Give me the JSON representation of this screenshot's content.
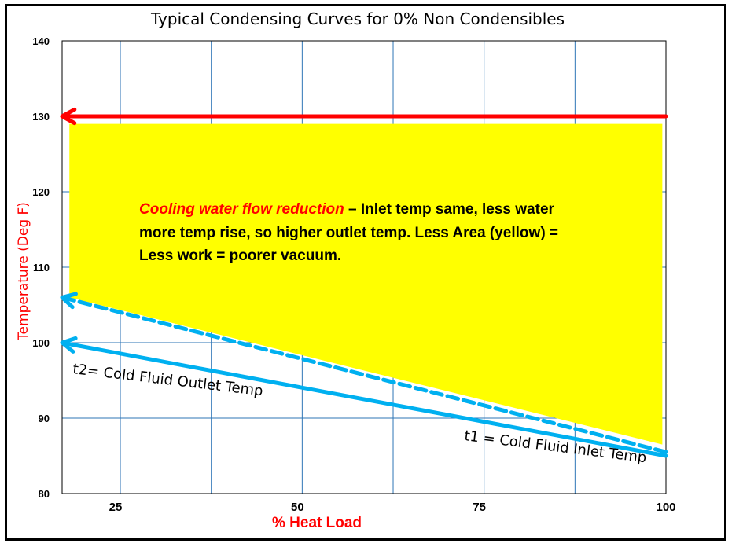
{
  "chart_data": {
    "type": "line",
    "title": "Typical Condensing Curves for 0% Non Condensibles",
    "xlabel": "% Heat Load",
    "ylabel": "Temperature (Deg F)",
    "xlim": [
      17,
      100
    ],
    "ylim": [
      80,
      140
    ],
    "x_ticks": [
      25,
      50,
      75,
      100
    ],
    "y_ticks": [
      80,
      90,
      100,
      110,
      120,
      130,
      140
    ],
    "grid": true,
    "series": [
      {
        "key": "condensing",
        "x": [
          100,
          17
        ],
        "y": [
          130,
          130
        ],
        "style": "solid",
        "arrow": "end"
      },
      {
        "key": "reduced_outlet",
        "x": [
          100,
          17
        ],
        "y": [
          85.5,
          106
        ],
        "style": "dashed",
        "arrow": "end"
      },
      {
        "key": "outlet",
        "x": [
          100,
          17
        ],
        "y": [
          85,
          100
        ],
        "style": "solid",
        "arrow": "end"
      }
    ],
    "shaded_region": {
      "label": "Less Area (yellow)",
      "polygon": [
        [
          18,
          129
        ],
        [
          99.5,
          129
        ],
        [
          99.5,
          86.5
        ],
        [
          18,
          106
        ]
      ]
    },
    "annotations": {
      "t2": "t2= Cold Fluid Outlet Temp",
      "t1": "t1 = Cold Fluid Inlet Temp",
      "note_highlight": "Cooling water flow reduction",
      "note_line1_rest": " – Inlet temp same, less water",
      "note_line2": "more temp rise, so higher outlet temp.  Less Area (yellow) =",
      "note_line3": "Less work = poorer vacuum."
    },
    "colors": {
      "grid": "#2e75b6",
      "condensing": "#ff0000",
      "water": "#00b0f0",
      "fill": "#ffff00",
      "highlight": "#ff0000",
      "axis_labels": "#ff0000"
    }
  }
}
